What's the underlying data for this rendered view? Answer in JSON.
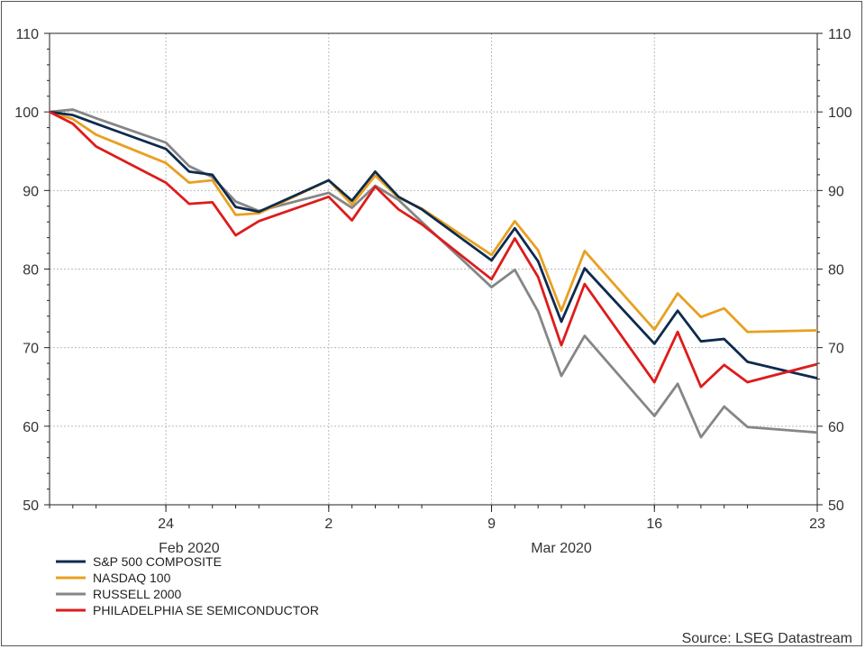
{
  "chart_data": {
    "type": "line",
    "title": "",
    "xlabel": "",
    "ylabel": "",
    "ylim": [
      50,
      110
    ],
    "y_ticks": [
      50,
      60,
      70,
      80,
      90,
      100,
      110
    ],
    "grid": true,
    "legend_position": "bottom-left",
    "x": [
      "2020-02-19",
      "2020-02-20",
      "2020-02-21",
      "2020-02-24",
      "2020-02-25",
      "2020-02-26",
      "2020-02-27",
      "2020-02-28",
      "2020-03-02",
      "2020-03-03",
      "2020-03-04",
      "2020-03-05",
      "2020-03-06",
      "2020-03-09",
      "2020-03-10",
      "2020-03-11",
      "2020-03-12",
      "2020-03-13",
      "2020-03-16",
      "2020-03-17",
      "2020-03-18",
      "2020-03-19",
      "2020-03-20",
      "2020-03-23"
    ],
    "x_ticks": [
      {
        "date": "2020-02-24",
        "label": "24"
      },
      {
        "date": "2020-03-02",
        "label": "2"
      },
      {
        "date": "2020-03-09",
        "label": "9"
      },
      {
        "date": "2020-03-16",
        "label": "16"
      },
      {
        "date": "2020-03-23",
        "label": "23"
      }
    ],
    "month_labels": [
      {
        "date": "2020-02-25",
        "label": "Feb 2020"
      },
      {
        "date": "2020-03-12",
        "label": "Mar 2020"
      }
    ],
    "series": [
      {
        "name": "S&P 500 COMPOSITE",
        "color": "#0d2b4e",
        "values": [
          100,
          99.6,
          98.5,
          95.3,
          92.4,
          92.0,
          87.9,
          87.3,
          91.3,
          88.7,
          92.4,
          89.2,
          87.6,
          81.1,
          85.2,
          81.0,
          73.3,
          80.1,
          70.5,
          74.7,
          70.8,
          71.1,
          68.2,
          66.1
        ]
      },
      {
        "name": "NASDAQ 100",
        "color": "#e8a020",
        "values": [
          100,
          99.1,
          97.1,
          93.5,
          91.0,
          91.3,
          86.9,
          87.1,
          91.3,
          88.2,
          91.9,
          89.1,
          87.7,
          81.8,
          86.1,
          82.4,
          74.7,
          82.3,
          72.3,
          76.9,
          73.9,
          75.0,
          72.0,
          72.2
        ]
      },
      {
        "name": "RUSSELL 2000",
        "color": "#868686",
        "values": [
          100,
          100.3,
          99.2,
          96.1,
          93.1,
          91.7,
          88.6,
          87.4,
          89.7,
          87.8,
          90.6,
          88.8,
          86.0,
          77.7,
          79.9,
          74.6,
          66.4,
          71.5,
          61.3,
          65.4,
          58.6,
          62.5,
          59.9,
          59.2
        ]
      },
      {
        "name": "PHILADELPHIA SE SEMICONDUCTOR",
        "color": "#dd1c1c",
        "values": [
          100,
          98.5,
          95.6,
          91.0,
          88.3,
          88.5,
          84.3,
          86.1,
          89.2,
          86.2,
          90.5,
          87.6,
          85.7,
          78.7,
          83.9,
          79.0,
          70.3,
          78.1,
          65.6,
          72.0,
          65.0,
          67.8,
          65.6,
          67.9
        ]
      }
    ]
  },
  "source_text": "Source: LSEG Datastream"
}
